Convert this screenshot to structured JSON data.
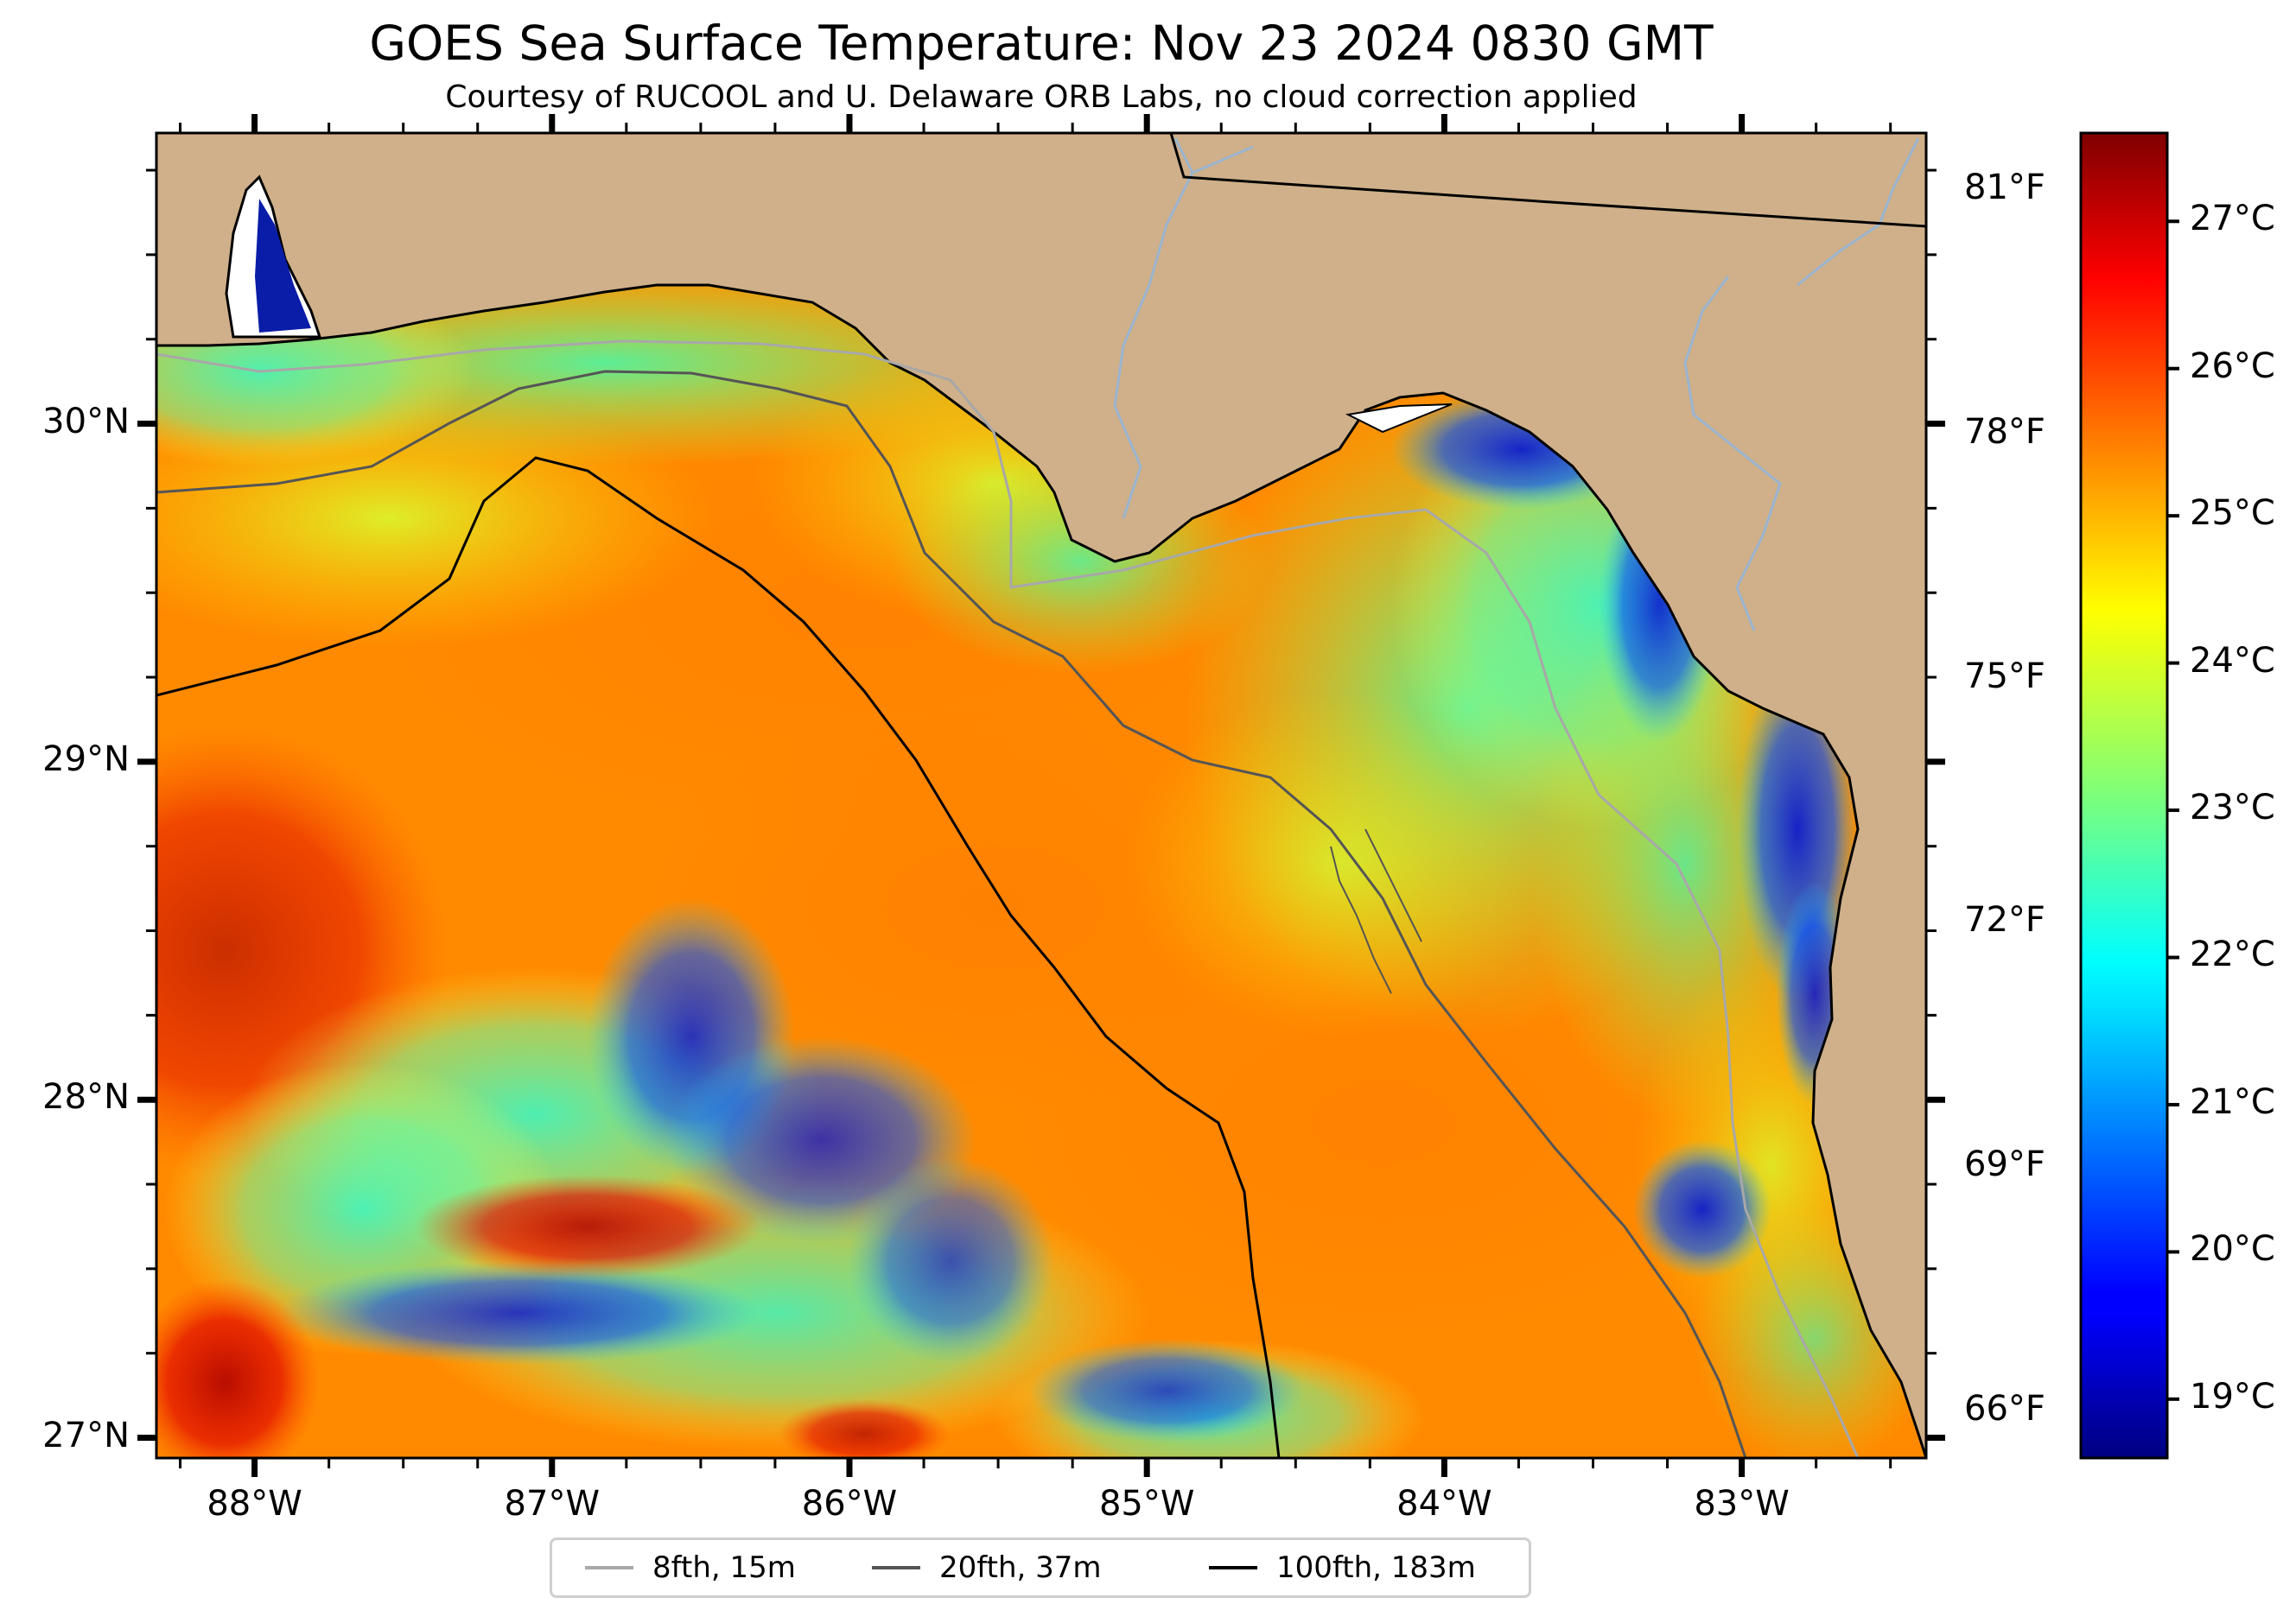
{
  "title": "GOES Sea Surface Temperature: Nov 23 2024 0830 GMT",
  "subtitle": "Courtesy of RUCOOL and U. Delaware ORB Labs, no cloud correction applied",
  "map": {
    "extent": {
      "lon_min": -88.33,
      "lon_max": -82.38,
      "lat_min": 26.94,
      "lat_max": 30.86
    },
    "colors": {
      "land": "#cfb08a",
      "ocean_nodata": "#ffffff",
      "coastline": "#000000",
      "rivers": "#9bb4cf"
    }
  },
  "axes": {
    "x_ticks": [
      {
        "lon": -88,
        "label": "88°W"
      },
      {
        "lon": -87,
        "label": "87°W"
      },
      {
        "lon": -86,
        "label": "86°W"
      },
      {
        "lon": -85,
        "label": "85°W"
      },
      {
        "lon": -84,
        "label": "84°W"
      },
      {
        "lon": -83,
        "label": "83°W"
      }
    ],
    "y_ticks_left": [
      {
        "lat": 30,
        "label": "30°N"
      },
      {
        "lat": 29,
        "label": "29°N"
      },
      {
        "lat": 28,
        "label": "28°N"
      },
      {
        "lat": 27,
        "label": "27°N"
      }
    ],
    "y_ticks_right": [
      {
        "degF": 81,
        "label": "81°F"
      },
      {
        "degF": 78,
        "label": "78°F"
      },
      {
        "degF": 75,
        "label": "75°F"
      },
      {
        "degF": 72,
        "label": "72°F"
      },
      {
        "degF": 69,
        "label": "69°F"
      },
      {
        "degF": 66,
        "label": "66°F"
      }
    ]
  },
  "colorbar": {
    "colormap": "jet",
    "vmin_c": 18.6,
    "vmax_c": 27.6,
    "ticks": [
      {
        "value": 27,
        "label": "27°C"
      },
      {
        "value": 26,
        "label": "26°C"
      },
      {
        "value": 25,
        "label": "25°C"
      },
      {
        "value": 24,
        "label": "24°C"
      },
      {
        "value": 23,
        "label": "23°C"
      },
      {
        "value": 22,
        "label": "22°C"
      },
      {
        "value": 21,
        "label": "21°C"
      },
      {
        "value": 20,
        "label": "20°C"
      },
      {
        "value": 19,
        "label": "19°C"
      }
    ]
  },
  "legend": [
    {
      "label": "8fth, 15m",
      "color": "#a8a8a8"
    },
    {
      "label": "20fth, 37m",
      "color": "#555555"
    },
    {
      "label": "100fth, 183m",
      "color": "#000000"
    }
  ]
}
